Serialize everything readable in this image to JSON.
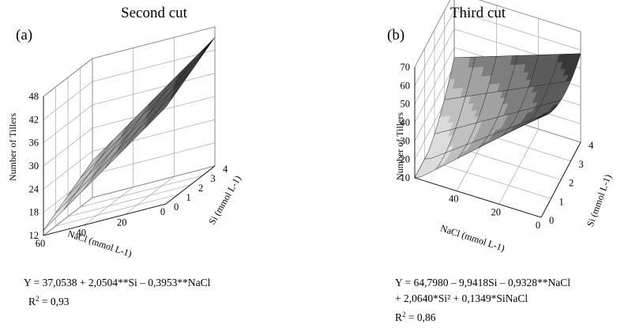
{
  "figure": {
    "titles": [
      "Second cut",
      "Third cut"
    ],
    "panel_labels": [
      "(a)",
      "(b)"
    ]
  },
  "chart_data": [
    {
      "type": "surface",
      "title": "Second cut",
      "panel_label": "(a)",
      "xlabel": "NaCl (mmol L-1)",
      "ylabel": "Si (mmol L-1)",
      "zlabel": "Number of Tillers",
      "x_ticks": [
        "60",
        "40",
        "20",
        "0"
      ],
      "y_ticks": [
        "0",
        "1",
        "2",
        "3",
        "4"
      ],
      "z_ticks": [
        "12",
        "18",
        "24",
        "30",
        "36",
        "42",
        "48"
      ],
      "xlim": [
        0,
        60
      ],
      "ylim": [
        0,
        4
      ],
      "zlim": [
        12,
        48
      ],
      "model": {
        "intercept": 37.0538,
        "Si": 2.0504,
        "NaCl": -0.3953,
        "Si2": 0,
        "SiNaCl": 0
      },
      "equation_lines": [
        "Y = 37,0538 + 2,0504**Si – 0,3953**NaCl"
      ],
      "r2_label": "R",
      "r2_value": " = 0,93",
      "grid": true
    },
    {
      "type": "surface",
      "title": "Third cut",
      "panel_label": "(b)",
      "xlabel": "NaCl (mmol L-1)",
      "ylabel": "Si (mmol L-1)",
      "zlabel": "Number of Tillers",
      "x_ticks": [
        "40",
        "20",
        "0"
      ],
      "y_ticks": [
        "0",
        "1",
        "2",
        "3",
        "4"
      ],
      "z_ticks": [
        "10",
        "20",
        "30",
        "40",
        "50",
        "60",
        "70"
      ],
      "xlim": [
        0,
        60
      ],
      "ylim": [
        0,
        4
      ],
      "zlim": [
        10,
        70
      ],
      "model": {
        "intercept": 64.798,
        "Si": -9.9418,
        "NaCl": -0.9328,
        "Si2": 2.064,
        "SiNaCl": 0.1349
      },
      "equation_lines": [
        "Y = 64,7980 – 9,9418Si – 0,9328**NaCl",
        "+ 2,0640*Si² + 0,1349*SiNaCl"
      ],
      "r2_label": "R",
      "r2_value": " = 0,86",
      "grid": true
    }
  ]
}
